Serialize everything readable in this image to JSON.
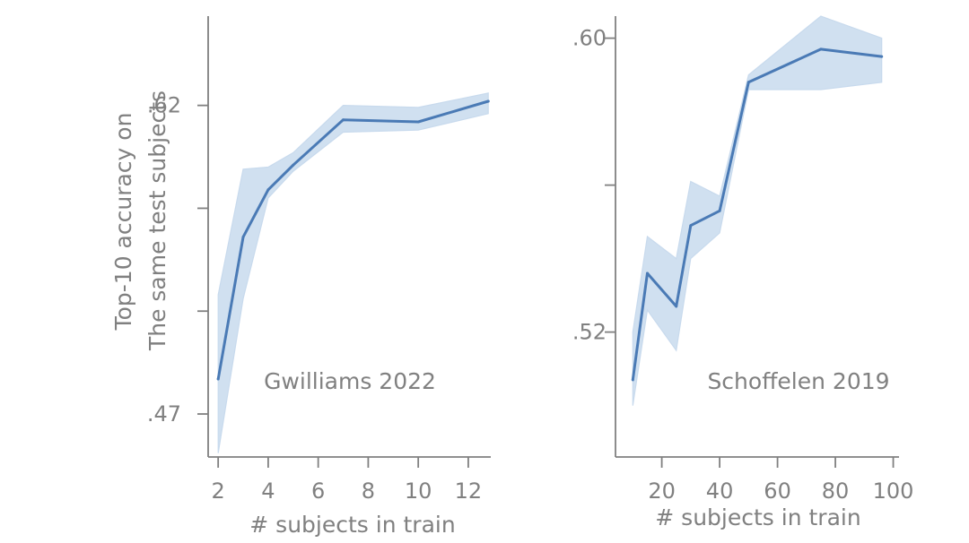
{
  "ylabel_lines": [
    "Top-10 accuracy on",
    "The same test subjects"
  ],
  "chart_data": [
    {
      "type": "line",
      "annotation": "Gwilliams 2022",
      "xlabel": "# subjects in train",
      "ylabel": "Top-10 accuracy on The same test subjects",
      "xlim": [
        1.6,
        12.9
      ],
      "ylim": [
        0.4491,
        0.6634
      ],
      "xticks": [
        2,
        4,
        6,
        8,
        10,
        12
      ],
      "yticks": [
        0.47,
        0.52,
        0.57,
        0.62
      ],
      "ytick_labels": [
        ".47",
        "",
        "",
        ".62"
      ],
      "color": "#4a7ab5",
      "band_color": "#c8daed",
      "x": [
        2,
        3,
        4,
        5,
        7,
        10,
        12.8
      ],
      "y": [
        0.487,
        0.556,
        0.579,
        0.591,
        0.613,
        0.612,
        0.622
      ],
      "lower": [
        0.451,
        0.526,
        0.575,
        0.588,
        0.607,
        0.608,
        0.616
      ],
      "upper": [
        0.528,
        0.589,
        0.59,
        0.597,
        0.62,
        0.619,
        0.626
      ]
    },
    {
      "type": "line",
      "annotation": "Schoffelen 2019",
      "xlabel": "# subjects in train",
      "ylabel": "",
      "xlim": [
        4,
        102
      ],
      "ylim": [
        0.486,
        0.606
      ],
      "xticks": [
        20,
        40,
        60,
        80,
        100
      ],
      "yticks": [
        0.52,
        0.56,
        0.6
      ],
      "ytick_labels": [
        ".52",
        "",
        ".60"
      ],
      "color": "#4a7ab5",
      "band_color": "#c8daed",
      "x": [
        10,
        15,
        25,
        30,
        40,
        50,
        75,
        96
      ],
      "y": [
        0.507,
        0.536,
        0.527,
        0.549,
        0.553,
        0.588,
        0.597,
        0.595
      ],
      "lower": [
        0.5,
        0.526,
        0.515,
        0.54,
        0.547,
        0.586,
        0.586,
        0.588
      ],
      "upper": [
        0.52,
        0.546,
        0.54,
        0.561,
        0.557,
        0.59,
        0.606,
        0.6
      ]
    }
  ]
}
